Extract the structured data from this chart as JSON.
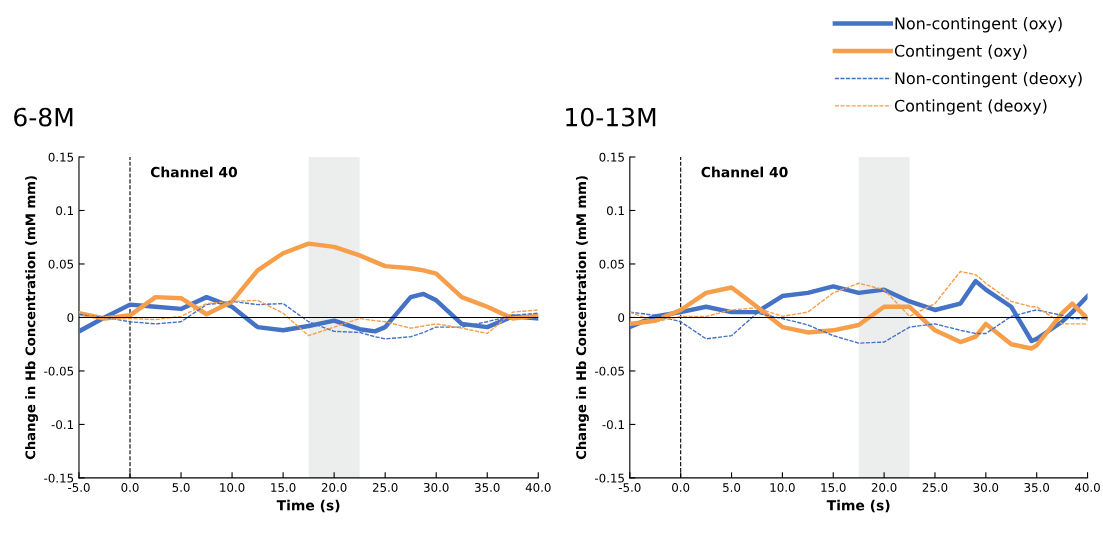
{
  "chart_data": [
    {
      "type": "line",
      "title": "6-8M",
      "xlabel": "Time (s)",
      "ylabel": "Change in Hb Concentration (mM mm)",
      "annotations": [
        "Channel 40"
      ],
      "legend": "top right",
      "x": [
        -5,
        -2.5,
        0,
        2.5,
        5,
        7.5,
        10,
        12.5,
        15,
        17.5,
        20,
        22.5,
        24,
        25,
        27.5,
        28.75,
        30,
        32.5,
        35,
        37.5,
        40
      ],
      "series": [
        {
          "name": "Non-contingent (oxy)",
          "color": "#4472c4",
          "line_style": "solid",
          "values": [
            -0.013,
            0,
            0.012,
            0.01,
            0.008,
            0.019,
            0.01,
            -0.009,
            -0.012,
            -0.008,
            -0.003,
            -0.011,
            -0.013,
            -0.009,
            0.019,
            0.022,
            0.016,
            -0.006,
            -0.009,
            0.001,
            -0.001
          ]
        },
        {
          "name": "Contingent (oxy)",
          "color": "#f79e4a",
          "line_style": "solid",
          "values": [
            0.004,
            -0.001,
            0.002,
            0.019,
            0.018,
            0.003,
            0.015,
            0.044,
            0.06,
            0.069,
            0.066,
            0.058,
            0.052,
            0.048,
            0.046,
            0.044,
            0.041,
            0.019,
            0.01,
            -0.001,
            0.002
          ]
        },
        {
          "name": "Non-contingent (deoxy)",
          "color": "#4472c4",
          "line_style": "dashed",
          "values": [
            0.003,
            0,
            -0.004,
            -0.006,
            -0.004,
            0.012,
            0.015,
            0.012,
            0.013,
            -0.004,
            -0.013,
            -0.014,
            -0.018,
            -0.02,
            -0.018,
            -0.014,
            -0.009,
            -0.009,
            -0.004,
            0.002,
            0.004
          ]
        },
        {
          "name": "Contingent (deoxy)",
          "color": "#f79e4a",
          "line_style": "dashed",
          "values": [
            0.005,
            -0.002,
            -0.001,
            -0.002,
            0.001,
            0.013,
            0.015,
            0.016,
            0.004,
            -0.017,
            -0.009,
            -0.001,
            -0.003,
            -0.004,
            -0.01,
            -0.008,
            -0.006,
            -0.01,
            -0.015,
            0.005,
            0.007
          ]
        }
      ],
      "xlim": [
        -5,
        40
      ],
      "ylim": [
        -0.15,
        0.15
      ],
      "xticks": [
        {
          "value": -5,
          "label": "-5.0"
        },
        {
          "value": 0,
          "label": "0.0"
        },
        {
          "value": 5,
          "label": "5.0"
        },
        {
          "value": 10,
          "label": "10.0"
        },
        {
          "value": 15,
          "label": "15.0"
        },
        {
          "value": 20,
          "label": "20.0"
        },
        {
          "value": 25,
          "label": "25.0"
        },
        {
          "value": 30,
          "label": "30.0"
        },
        {
          "value": 35,
          "label": "35.0"
        },
        {
          "value": 40,
          "label": "40.0"
        }
      ],
      "yticks": [
        -0.15,
        -0.1,
        -0.05,
        0,
        0.05,
        0.1,
        0.15
      ],
      "ref_lines": [
        {
          "axis": "x",
          "value": 0,
          "color": "#000000",
          "line_style": "dashed"
        },
        {
          "axis": "y",
          "value": 0,
          "color": "#000000",
          "line_style": "solid"
        }
      ],
      "bands": [
        {
          "axis": "x",
          "from": 17.5,
          "to": 22.5,
          "color": "#eceeed"
        }
      ],
      "grid": false
    },
    {
      "type": "line",
      "title": "10-13M",
      "xlabel": "Time (s)",
      "ylabel": "Change in Hb Concentration (mM mm)",
      "annotations": [
        "Channel 40"
      ],
      "x": [
        -5,
        -2.5,
        0,
        2.5,
        5,
        7.5,
        10,
        12.5,
        15,
        17.5,
        20,
        22.5,
        25,
        27.5,
        29,
        30,
        32.5,
        34.5,
        35,
        37.5,
        38.5,
        40
      ],
      "series": [
        {
          "color": "#4472c4",
          "line_style": "solid",
          "values": [
            -0.009,
            0.001,
            0.005,
            0.01,
            0.005,
            0.005,
            0.02,
            0.023,
            0.029,
            0.023,
            0.026,
            0.015,
            0.007,
            0.013,
            0.034,
            0.026,
            0.01,
            -0.022,
            -0.02,
            -0.004,
            0.005,
            0.02
          ]
        },
        {
          "color": "#f79e4a",
          "line_style": "solid",
          "values": [
            -0.006,
            -0.003,
            0.007,
            0.023,
            0.028,
            0.01,
            -0.009,
            -0.014,
            -0.012,
            -0.007,
            0.01,
            0.01,
            -0.012,
            -0.023,
            -0.018,
            -0.006,
            -0.025,
            -0.029,
            -0.026,
            0.004,
            0.013,
            -0.001
          ]
        },
        {
          "color": "#4472c4",
          "line_style": "dashed",
          "values": [
            0.005,
            0.002,
            -0.004,
            -0.02,
            -0.017,
            0.004,
            -0.001,
            -0.007,
            -0.017,
            -0.024,
            -0.023,
            -0.009,
            -0.006,
            -0.012,
            -0.015,
            -0.015,
            0.001,
            0.006,
            0.007,
            0.002,
            -0.001,
            -0.001
          ]
        },
        {
          "color": "#f79e4a",
          "line_style": "dashed",
          "values": [
            0.005,
            -0.004,
            0.001,
            0.001,
            0.007,
            0.009,
            0.001,
            0.005,
            0.023,
            0.032,
            0.026,
            0.001,
            0.013,
            0.043,
            0.04,
            0.032,
            0.015,
            0.01,
            0.01,
            -0.006,
            -0.006,
            -0.006
          ]
        }
      ],
      "xlim": [
        -5,
        40
      ],
      "ylim": [
        -0.15,
        0.15
      ],
      "xticks": [
        {
          "value": -5,
          "label": "-5.0"
        },
        {
          "value": 0,
          "label": "0.0"
        },
        {
          "value": 5,
          "label": "5.0"
        },
        {
          "value": 10,
          "label": "10.0"
        },
        {
          "value": 15,
          "label": "15.0"
        },
        {
          "value": 20,
          "label": "20.0"
        },
        {
          "value": 25,
          "label": "25.0"
        },
        {
          "value": 30,
          "label": "30.0"
        },
        {
          "value": 35,
          "label": "35.0"
        },
        {
          "value": 40,
          "label": "40.0"
        }
      ],
      "yticks": [
        -0.15,
        -0.1,
        -0.05,
        0,
        0.05,
        0.1,
        0.15
      ],
      "ref_lines": [
        {
          "axis": "x",
          "value": 0,
          "color": "#000000",
          "line_style": "dashed"
        },
        {
          "axis": "y",
          "value": 0,
          "color": "#000000",
          "line_style": "solid"
        }
      ],
      "bands": [
        {
          "axis": "x",
          "from": 17.5,
          "to": 22.5,
          "color": "#eceeed"
        }
      ],
      "grid": false
    }
  ]
}
